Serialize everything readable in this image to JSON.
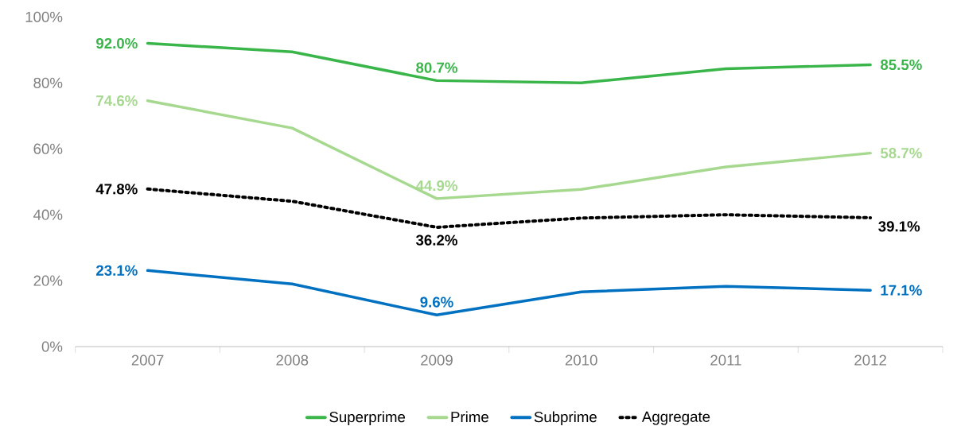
{
  "chart_data": {
    "type": "line",
    "categories": [
      "2007",
      "2008",
      "2009",
      "2010",
      "2011",
      "2012"
    ],
    "series": [
      {
        "name": "Superprime",
        "color": "#3ab54a",
        "line_style": "solid",
        "values": [
          92.0,
          89.4,
          80.7,
          80.0,
          84.3,
          85.5
        ],
        "value_labels": [
          "92.0%",
          null,
          "80.7%",
          null,
          null,
          "85.5%"
        ]
      },
      {
        "name": "Prime",
        "color": "#a6d98f",
        "line_style": "solid",
        "values": [
          74.6,
          66.3,
          44.9,
          47.7,
          54.5,
          58.7
        ],
        "value_labels": [
          "74.6%",
          null,
          "44.9%",
          null,
          null,
          "58.7%"
        ]
      },
      {
        "name": "Subprime",
        "color": "#0070c0",
        "line_style": "solid",
        "values": [
          23.1,
          19.0,
          9.6,
          16.6,
          18.3,
          17.1
        ],
        "value_labels": [
          "23.1%",
          null,
          "9.6%",
          null,
          null,
          "17.1%"
        ]
      },
      {
        "name": "Aggregate",
        "color": "#000000",
        "line_style": "dotted",
        "values": [
          47.8,
          44.1,
          36.2,
          39.0,
          40.0,
          39.1
        ],
        "value_labels": [
          "47.8%",
          null,
          "36.2%",
          null,
          null,
          "39.1%"
        ]
      }
    ],
    "ylim": [
      0,
      100
    ],
    "yticks": [
      {
        "value": 0,
        "label": "0%"
      },
      {
        "value": 20,
        "label": "20%"
      },
      {
        "value": 40,
        "label": "40%"
      },
      {
        "value": 60,
        "label": "60%"
      },
      {
        "value": 80,
        "label": "80%"
      },
      {
        "value": 100,
        "label": "100%"
      }
    ],
    "legend": "bottom",
    "grid": false,
    "marker": "none"
  }
}
